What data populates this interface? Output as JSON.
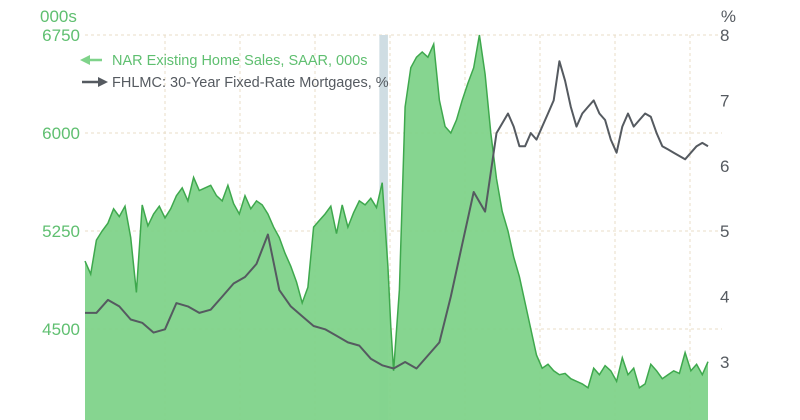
{
  "chart_data": {
    "type": "area",
    "left_axis": {
      "unit": "000s",
      "ticks": [
        "6750",
        "6000",
        "5250",
        "4500"
      ],
      "tick_values": [
        6750,
        6000,
        5250,
        4500
      ],
      "range": [
        4000,
        6750
      ]
    },
    "right_axis": {
      "unit": "%",
      "ticks": [
        "8",
        "7",
        "6",
        "5",
        "4",
        "3"
      ],
      "tick_values": [
        8,
        7,
        6,
        5,
        4,
        3
      ],
      "range": [
        2.2,
        8
      ]
    },
    "grid": true,
    "legend_position": "top-left",
    "recession_band": {
      "start": 103,
      "end": 106
    },
    "colors": {
      "sales_fill": "#7fd38a",
      "sales_line": "#3ea84d",
      "rate_line": "#555a60",
      "band": "#cfdde3",
      "grid": "#e8dcc7",
      "green_text": "#5fbf70",
      "grey_text": "#555a60"
    },
    "series": [
      {
        "name": "NAR Existing Home Sales, SAAR, 000s",
        "axis": "left",
        "x": [
          0,
          2,
          4,
          6,
          8,
          10,
          12,
          14,
          16,
          18,
          20,
          22,
          24,
          26,
          28,
          30,
          32,
          34,
          36,
          38,
          40,
          42,
          44,
          46,
          48,
          50,
          52,
          54,
          56,
          58,
          60,
          62,
          64,
          66,
          68,
          70,
          72,
          74,
          76,
          78,
          80,
          82,
          84,
          86,
          88,
          90,
          92,
          94,
          96,
          98,
          100,
          102,
          104,
          106,
          107,
          108,
          110,
          112,
          114,
          116,
          118,
          120,
          122,
          124,
          126,
          128,
          130,
          132,
          134,
          136,
          138,
          140,
          142,
          144,
          146,
          148,
          150,
          152,
          154,
          156,
          158,
          160,
          162,
          164,
          166,
          168,
          170,
          172,
          174,
          176,
          178,
          180,
          182,
          184,
          186,
          188,
          190,
          192,
          194,
          196,
          198,
          200,
          202,
          204,
          206,
          208,
          210,
          212,
          214,
          216,
          218
        ],
        "values": [
          5020,
          4920,
          5180,
          5250,
          5310,
          5420,
          5360,
          5440,
          5200,
          4780,
          5450,
          5290,
          5380,
          5440,
          5350,
          5420,
          5520,
          5580,
          5480,
          5660,
          5560,
          5580,
          5600,
          5520,
          5480,
          5600,
          5460,
          5380,
          5520,
          5420,
          5480,
          5450,
          5380,
          5280,
          5200,
          5080,
          4980,
          4860,
          4700,
          4820,
          5280,
          5330,
          5380,
          5440,
          5230,
          5450,
          5280,
          5390,
          5480,
          5450,
          5500,
          5430,
          5620,
          4980,
          4520,
          4180,
          4800,
          6200,
          6500,
          6580,
          6620,
          6580,
          6680,
          6250,
          6050,
          6000,
          6100,
          6250,
          6380,
          6500,
          6750,
          6450,
          6000,
          5650,
          5400,
          5250,
          5050,
          4900,
          4700,
          4500,
          4300,
          4200,
          4230,
          4180,
          4150,
          4160,
          4120,
          4100,
          4080,
          4050,
          4200,
          4150,
          4220,
          4180,
          4100,
          4280,
          4150,
          4200,
          4050,
          4080,
          4230,
          4180,
          4120,
          4150,
          4180,
          4160,
          4320,
          4180,
          4230,
          4150,
          4250
        ]
      },
      {
        "name": "FHLMC: 30-Year Fixed-Rate Mortgages, %",
        "axis": "right",
        "x": [
          0,
          4,
          8,
          12,
          16,
          20,
          24,
          28,
          32,
          36,
          40,
          44,
          48,
          52,
          56,
          60,
          64,
          68,
          72,
          76,
          80,
          84,
          88,
          92,
          96,
          100,
          104,
          108,
          112,
          116,
          120,
          124,
          128,
          132,
          136,
          140,
          144,
          148,
          150,
          152,
          154,
          156,
          158,
          160,
          162,
          164,
          166,
          168,
          170,
          172,
          174,
          176,
          178,
          180,
          182,
          184,
          186,
          188,
          190,
          192,
          194,
          196,
          198,
          200,
          202,
          204,
          206,
          208,
          210,
          212,
          214,
          216,
          218
        ],
        "values": [
          3.75,
          3.75,
          3.95,
          3.85,
          3.65,
          3.6,
          3.45,
          3.5,
          3.9,
          3.85,
          3.75,
          3.8,
          4.0,
          4.2,
          4.3,
          4.5,
          4.95,
          4.1,
          3.85,
          3.7,
          3.55,
          3.5,
          3.4,
          3.3,
          3.25,
          3.05,
          2.95,
          2.9,
          3.0,
          2.9,
          3.1,
          3.3,
          4.0,
          4.8,
          5.6,
          5.3,
          6.5,
          6.8,
          6.6,
          6.3,
          6.3,
          6.5,
          6.4,
          6.6,
          6.8,
          7.0,
          7.6,
          7.3,
          6.9,
          6.6,
          6.8,
          6.9,
          7.0,
          6.8,
          6.7,
          6.4,
          6.2,
          6.6,
          6.8,
          6.6,
          6.7,
          6.8,
          6.75,
          6.5,
          6.3,
          6.25,
          6.2,
          6.15,
          6.1,
          6.2,
          6.3,
          6.35,
          6.3
        ]
      }
    ]
  }
}
